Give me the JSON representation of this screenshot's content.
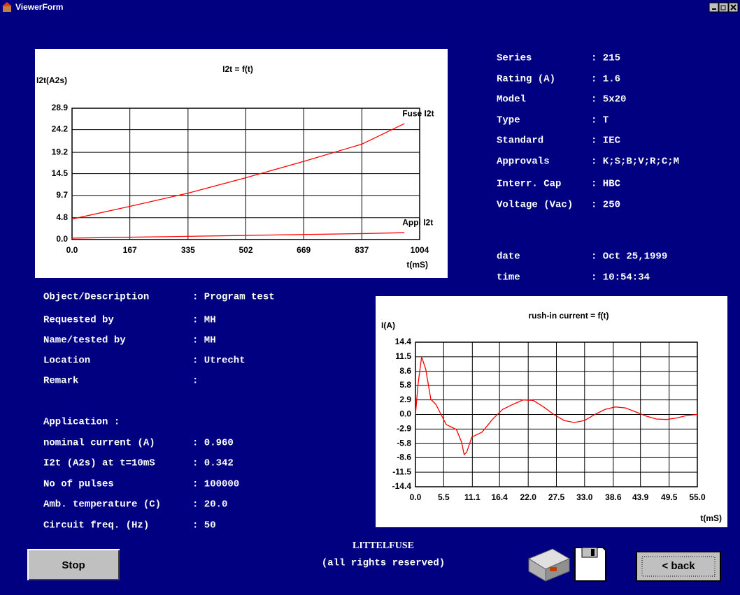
{
  "window": {
    "title": "ViewerForm"
  },
  "chart_data": [
    {
      "type": "line",
      "title": "I2t = f(t)",
      "y_label": "I2t(A2s)",
      "x_label": "t(mS)",
      "x": [
        0,
        167,
        335,
        502,
        669,
        837,
        960
      ],
      "series": [
        {
          "name": "Fuse I2t",
          "color": "#ff0000",
          "values": [
            4.5,
            7.3,
            10.2,
            13.6,
            17.2,
            21.0,
            25.5
          ]
        },
        {
          "name": "Appl I2t",
          "color": "#ff0000",
          "values": [
            0.3,
            0.5,
            0.7,
            0.9,
            1.1,
            1.3,
            1.5
          ]
        }
      ],
      "xlim": [
        0,
        1004
      ],
      "ylim": [
        0,
        28.9
      ],
      "xticks": [
        {
          "value": 0,
          "label": "0.0"
        },
        167,
        335,
        502,
        669,
        837,
        1004
      ],
      "yticks": [
        {
          "value": 0,
          "label": "0.0"
        },
        4.8,
        9.7,
        14.5,
        19.2,
        24.2,
        28.9
      ],
      "grid": true
    },
    {
      "type": "line",
      "title": "rush-in current = f(t)",
      "y_label": "I(A)",
      "x_label": "t(mS)",
      "x": [
        0,
        0.5,
        1.2,
        2,
        3,
        4,
        5,
        6,
        7,
        8,
        9,
        9.5,
        10,
        11,
        12,
        13,
        15,
        17,
        19,
        21,
        23,
        25,
        27,
        29,
        31,
        33,
        35,
        37,
        39,
        41,
        43,
        45,
        47,
        49,
        51,
        53,
        55
      ],
      "series": [
        {
          "name": null,
          "color": "#ff0000",
          "values": [
            0,
            6,
            11.5,
            9,
            3,
            2,
            0,
            -2,
            -2.5,
            -3,
            -5.5,
            -8,
            -7.5,
            -4.5,
            -4,
            -3.5,
            -1,
            1,
            2,
            2.9,
            2.8,
            1.5,
            0,
            -1.2,
            -1.6,
            -1.2,
            0,
            1,
            1.5,
            1.3,
            0.5,
            -0.3,
            -0.9,
            -1,
            -0.7,
            -0.2,
            0
          ]
        }
      ],
      "xlim": [
        0,
        55
      ],
      "ylim": [
        -14.4,
        14.4
      ],
      "xticks": [
        {
          "value": 0,
          "label": "0.0"
        },
        5.5,
        11.1,
        16.4,
        {
          "value": 22,
          "label": "22.0"
        },
        27.5,
        {
          "value": 33,
          "label": "33.0"
        },
        38.6,
        43.9,
        49.5,
        {
          "value": 55,
          "label": "55.0"
        }
      ],
      "yticks": [
        14.4,
        11.5,
        8.6,
        5.8,
        2.9,
        {
          "value": 0,
          "label": "0.0"
        },
        -2.9,
        -5.8,
        -8.6,
        -11.5,
        -14.4
      ],
      "grid": true
    }
  ],
  "specs": [
    {
      "label": "Series",
      "value": ": 215"
    },
    {
      "label": "Rating (A)",
      "value": ": 1.6"
    },
    {
      "label": "Model",
      "value": ": 5x20"
    },
    {
      "label": "Type",
      "value": ": T"
    },
    {
      "label": "Standard",
      "value": ": IEC"
    },
    {
      "label": "Approvals",
      "value": ": K;S;B;V;R;C;M"
    },
    {
      "label": "Interr. Cap",
      "value": ": HBC"
    },
    {
      "label": "Voltage (Vac)",
      "value": ": 250"
    }
  ],
  "stamp": [
    {
      "label": "date",
      "value": ": Oct 25,1999"
    },
    {
      "label": "time",
      "value": ": 10:54:34"
    }
  ],
  "fields": [
    {
      "label": "Object/Description",
      "value": ": Program test"
    },
    {
      "label": "Requested by",
      "value": ": MH"
    },
    {
      "label": "Name/tested by",
      "value": ": MH"
    },
    {
      "label": "Location",
      "value": ": Utrecht"
    },
    {
      "label": "Remark",
      "value": ":"
    }
  ],
  "application": {
    "heading": "Application :",
    "rows": [
      {
        "label": "nominal current (A)",
        "value": ": 0.960"
      },
      {
        "label": "I2t (A2s) at t=10mS",
        "value": ": 0.342"
      },
      {
        "label": "No of pulses",
        "value": ": 100000"
      },
      {
        "label": "Amb. temperature (C)",
        "value": ": 20.0"
      },
      {
        "label": "Circuit freq. (Hz)",
        "value": ": 50"
      }
    ]
  },
  "footer": {
    "company": "LITTELFUSE",
    "rights": "(all rights reserved)"
  },
  "buttons": {
    "stop": "Stop",
    "back": "< back"
  }
}
